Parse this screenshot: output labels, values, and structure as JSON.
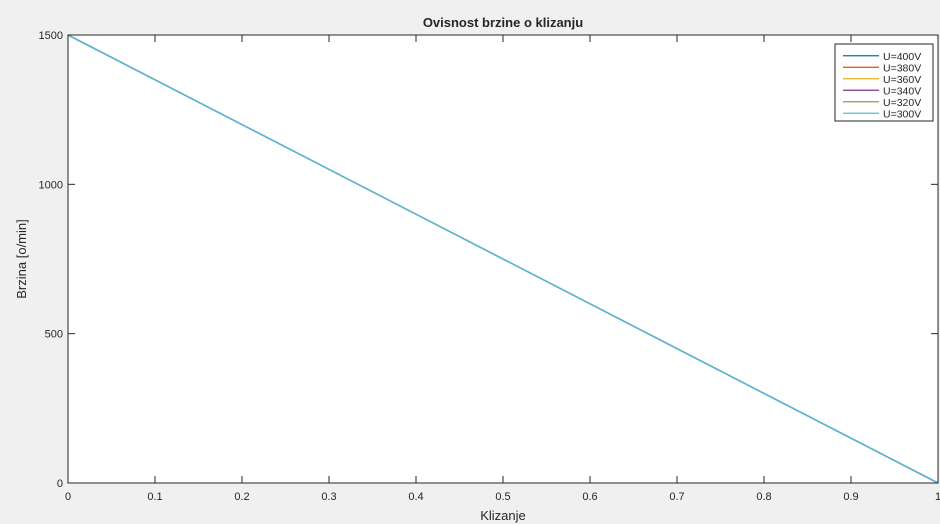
{
  "chart_data": {
    "type": "line",
    "title": "Ovisnost brzine o klizanju",
    "xlabel": "Klizanje",
    "ylabel": "Brzina [o/min]",
    "xlim": [
      0,
      1
    ],
    "ylim": [
      0,
      1500
    ],
    "xticks": [
      0,
      0.1,
      0.2,
      0.3,
      0.4,
      0.5,
      0.6,
      0.7,
      0.8,
      0.9,
      1
    ],
    "xtick_labels": [
      "0",
      "0.1",
      "0.2",
      "0.3",
      "0.4",
      "0.5",
      "0.6",
      "0.7",
      "0.8",
      "0.9",
      "1"
    ],
    "yticks": [
      0,
      500,
      1000,
      1500
    ],
    "ytick_labels": [
      "0",
      "500",
      "1000",
      "1500"
    ],
    "grid": false,
    "legend_position": "top-right",
    "series": [
      {
        "name": "U=400V",
        "color": "#0072bd",
        "x": [
          0,
          1
        ],
        "y": [
          1500,
          0
        ]
      },
      {
        "name": "U=380V",
        "color": "#d95319",
        "x": [
          0,
          1
        ],
        "y": [
          1500,
          0
        ]
      },
      {
        "name": "U=360V",
        "color": "#edb120",
        "x": [
          0,
          1
        ],
        "y": [
          1500,
          0
        ]
      },
      {
        "name": "U=340V",
        "color": "#7e2f8e",
        "x": [
          0,
          1
        ],
        "y": [
          1500,
          0
        ]
      },
      {
        "name": "U=320V",
        "color": "#77ac30",
        "x": [
          0,
          1
        ],
        "y": [
          1500,
          0
        ]
      },
      {
        "name": "U=300V",
        "color": "#4dbeee",
        "x": [
          0,
          1
        ],
        "y": [
          1500,
          0
        ]
      }
    ]
  }
}
